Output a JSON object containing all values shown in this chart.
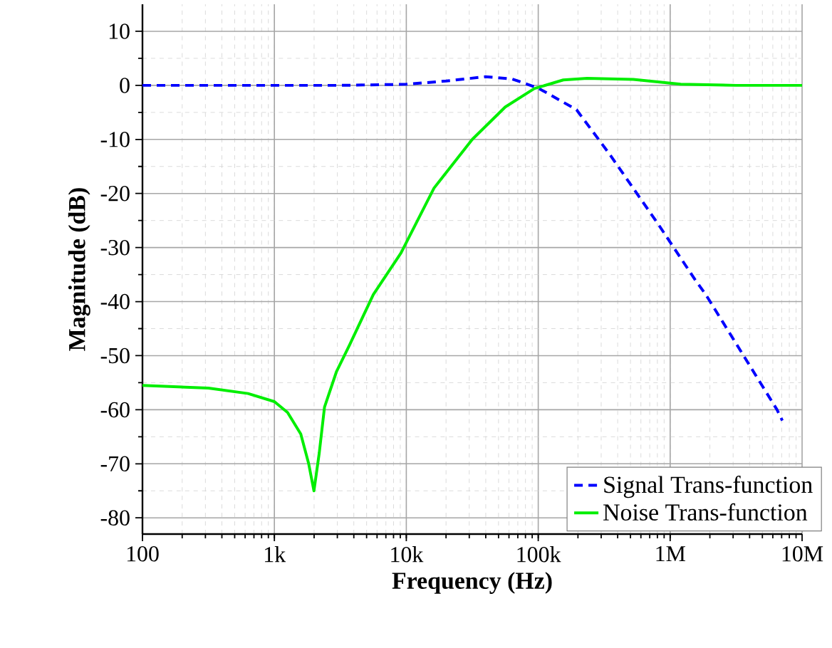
{
  "chart_data": {
    "type": "line",
    "xlabel": "Frequency (Hz)",
    "ylabel": "Magnitude (dB)",
    "log": "x",
    "xlim": [
      100,
      10000000
    ],
    "ylim": [
      -83,
      15
    ],
    "xticks": [
      {
        "value": 100,
        "label": "100"
      },
      {
        "value": 1000,
        "label": "1k"
      },
      {
        "value": 10000,
        "label": "10k"
      },
      {
        "value": 100000,
        "label": "100k"
      },
      {
        "value": 1000000,
        "label": "1M"
      },
      {
        "value": 10000000,
        "label": "10M"
      }
    ],
    "yticks": [
      -80,
      -70,
      -60,
      -50,
      -40,
      -30,
      -20,
      -10,
      0,
      10
    ],
    "grid": true,
    "legend": "bottom right",
    "series": [
      {
        "name": "Signal Trans-function",
        "color": "#0000ff",
        "line_style": "dashed",
        "x": [
          100,
          1000,
          3162,
          10000,
          20000,
          39811,
          63096,
          100000,
          194984,
          346737,
          812831,
          1000000,
          1548817,
          1862087,
          6456542,
          7079458
        ],
        "values": [
          0,
          0,
          0,
          0.2,
          0.8,
          1.6,
          1.2,
          -0.5,
          -4.5,
          -12.7,
          -25.7,
          -29,
          -36,
          -38.7,
          -60,
          -62
        ]
      },
      {
        "name": "Noise Trans-function",
        "color": "#00ee00",
        "line_style": "solid",
        "x": [
          100,
          316,
          631,
          1000,
          1259,
          1585,
          1820,
          1995,
          2188,
          2399,
          2951,
          3715,
          5623,
          9120,
          16218,
          31623,
          56234,
          93325,
          154882,
          234423,
          524807,
          1202264,
          3162278,
          10000000
        ],
        "values": [
          -55.5,
          -56,
          -57,
          -58.5,
          -60.5,
          -64.5,
          -70,
          -75,
          -68,
          -59.5,
          -53,
          -48,
          -38.7,
          -31,
          -19,
          -10,
          -4,
          -0.6,
          1,
          1.3,
          1.1,
          0.2,
          0,
          0
        ]
      }
    ]
  }
}
